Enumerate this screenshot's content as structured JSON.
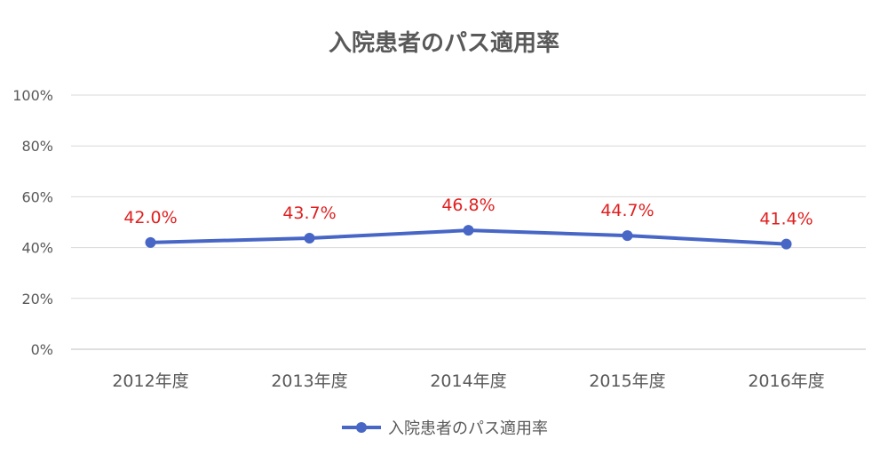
{
  "chart_data": {
    "type": "line",
    "title": "入院患者のパス適用率",
    "categories": [
      "2012年度",
      "2013年度",
      "2014年度",
      "2015年度",
      "2016年度"
    ],
    "series": [
      {
        "name": "入院患者のパス適用率",
        "values": [
          42.0,
          43.7,
          46.8,
          44.7,
          41.4
        ],
        "labels": [
          "42.0%",
          "43.7%",
          "46.8%",
          "44.7%",
          "41.4%"
        ],
        "color": "#4766c5"
      }
    ],
    "ylim": [
      0,
      100
    ],
    "yticks": [
      "0%",
      "20%",
      "40%",
      "60%",
      "80%",
      "100%"
    ],
    "grid": true,
    "legend": "bottom",
    "label_color": "#e02020"
  }
}
